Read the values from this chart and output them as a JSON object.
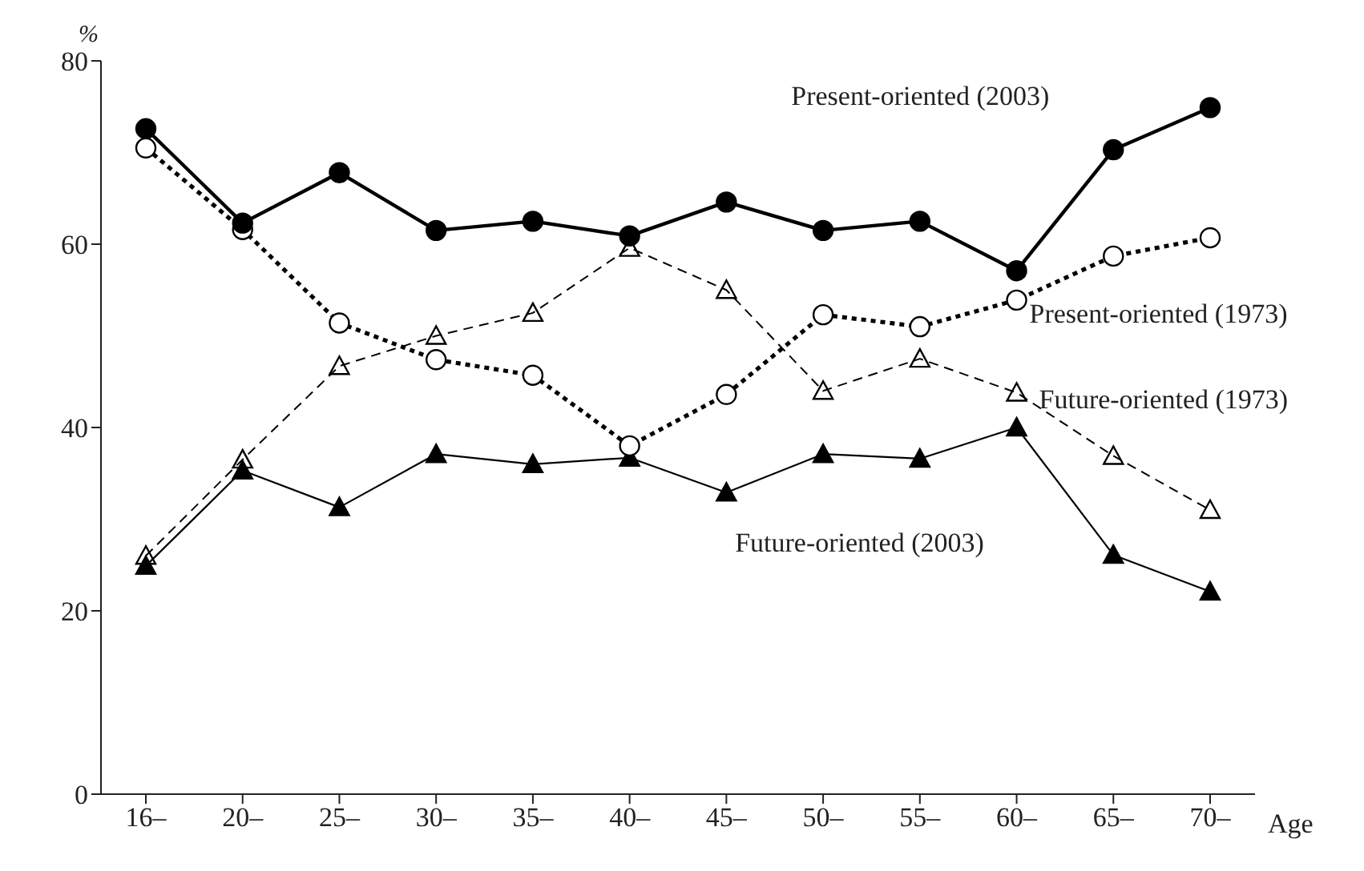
{
  "chart_data": {
    "type": "line",
    "xlabel": "Age",
    "ylabel": "%",
    "categories": [
      "16–",
      "20–",
      "25–",
      "30–",
      "35–",
      "40–",
      "45–",
      "50–",
      "55–",
      "60–",
      "65–",
      "70–"
    ],
    "ylim": [
      0,
      80
    ],
    "yticks": [
      0,
      20,
      40,
      60,
      80
    ],
    "grid": false,
    "legend": false,
    "series": [
      {
        "name": "Present-oriented (2003)",
        "color": "#000000",
        "marker": "circle",
        "line_style": "solid",
        "values": [
          72.6,
          62.3,
          67.8,
          61.5,
          62.5,
          60.9,
          64.6,
          61.5,
          62.5,
          57.1,
          70.3,
          74.9
        ]
      },
      {
        "name": "Present-oriented (1973)",
        "color": "#000000",
        "marker": "circle",
        "line_style": "dotted",
        "values": [
          70.5,
          61.6,
          51.4,
          47.4,
          45.7,
          38,
          43.6,
          52.3,
          51,
          53.9,
          58.7,
          60.7
        ]
      },
      {
        "name": "Future-oriented (1973)",
        "color": "#000000",
        "marker": "triangle",
        "line_style": "dashed",
        "values": [
          26,
          36.5,
          46.7,
          50,
          52.5,
          59.6,
          55,
          44,
          47.5,
          43.8,
          36.9,
          31
        ]
      },
      {
        "name": "Future-oriented (2003)",
        "color": "#000000",
        "marker": "triangle",
        "line_style": "solid",
        "values": [
          24.9,
          35.3,
          31.3,
          37.1,
          36,
          36.7,
          32.9,
          37.1,
          36.6,
          40,
          26.1,
          22.1
        ]
      }
    ]
  }
}
